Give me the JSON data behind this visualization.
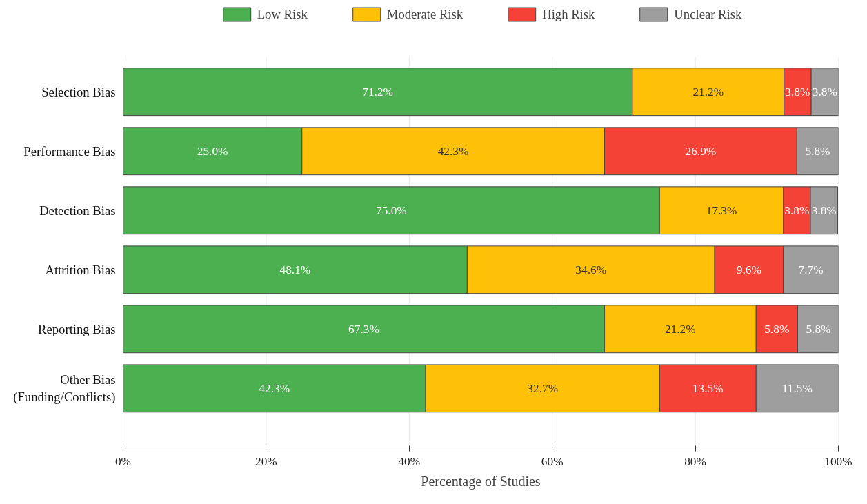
{
  "chart_data": {
    "type": "bar",
    "orientation": "horizontal",
    "stacked": true,
    "xlabel": "Percentage of Studies",
    "categories": [
      "Selection Bias",
      "Performance Bias",
      "Detection Bias",
      "Attrition Bias",
      "Reporting Bias",
      "Other Bias\n(Funding/Conflicts)"
    ],
    "series": [
      {
        "name": "Low Risk",
        "color": "#4caf50",
        "values": [
          71.2,
          25.0,
          75.0,
          48.1,
          67.3,
          42.3
        ],
        "value_labels": [
          "71.2%",
          "25.0%",
          "75.0%",
          "48.1%",
          "67.3%",
          "42.3%"
        ]
      },
      {
        "name": "Moderate Risk",
        "color": "#ffc107",
        "values": [
          21.2,
          42.3,
          17.3,
          34.6,
          21.2,
          32.7
        ],
        "value_labels": [
          "21.2%",
          "42.3%",
          "17.3%",
          "34.6%",
          "21.2%",
          "32.7%"
        ]
      },
      {
        "name": "High Risk",
        "color": "#f44336",
        "values": [
          3.8,
          26.9,
          3.8,
          9.6,
          5.8,
          13.5
        ],
        "value_labels": [
          "3.8%",
          "26.9%",
          "3.8%",
          "9.6%",
          "5.8%",
          "13.5%"
        ]
      },
      {
        "name": "Unclear Risk",
        "color": "#9e9e9e",
        "values": [
          3.8,
          5.8,
          3.8,
          7.7,
          5.8,
          11.5
        ],
        "value_labels": [
          "3.8%",
          "5.8%",
          "3.8%",
          "7.7%",
          "5.8%",
          "11.5%"
        ]
      }
    ],
    "xlim": [
      0,
      100
    ],
    "xticks": [
      {
        "value": 0,
        "label": "0%"
      },
      {
        "value": 20,
        "label": "20%"
      },
      {
        "value": 40,
        "label": "40%"
      },
      {
        "value": 60,
        "label": "60%"
      },
      {
        "value": 80,
        "label": "80%"
      },
      {
        "value": 100,
        "label": "100%"
      }
    ],
    "grid": "x",
    "legend": "top",
    "data_labels": true
  }
}
